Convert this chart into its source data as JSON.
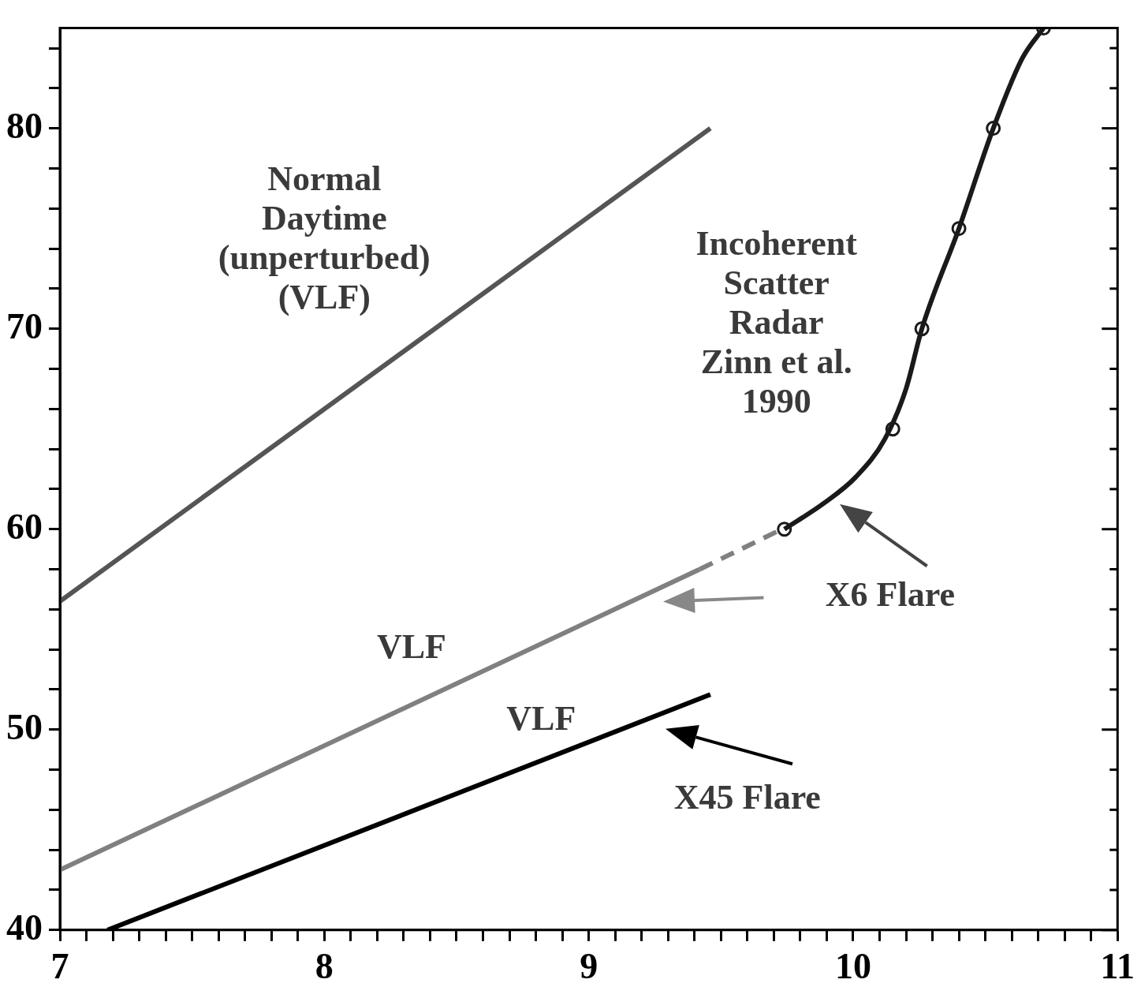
{
  "chart_data": {
    "type": "line",
    "xlim": [
      7,
      11
    ],
    "ylim": [
      40,
      85
    ],
    "xticks": [
      7,
      {
        "value": 7.1,
        "label": null
      },
      {
        "value": 7.2,
        "label": null
      },
      {
        "value": 7.3,
        "label": null
      },
      {
        "value": 7.4,
        "label": null
      },
      {
        "value": 7.5,
        "label": null
      },
      {
        "value": 7.6,
        "label": null
      },
      {
        "value": 7.7,
        "label": null
      },
      {
        "value": 7.8,
        "label": null
      },
      {
        "value": 7.9,
        "label": null
      },
      8,
      {
        "value": 8.1,
        "label": null
      },
      {
        "value": 8.2,
        "label": null
      },
      {
        "value": 8.3,
        "label": null
      },
      {
        "value": 8.4,
        "label": null
      },
      {
        "value": 8.5,
        "label": null
      },
      {
        "value": 8.6,
        "label": null
      },
      {
        "value": 8.7,
        "label": null
      },
      {
        "value": 8.8,
        "label": null
      },
      {
        "value": 8.9,
        "label": null
      },
      9,
      {
        "value": 9.1,
        "label": null
      },
      {
        "value": 9.2,
        "label": null
      },
      {
        "value": 9.3,
        "label": null
      },
      {
        "value": 9.4,
        "label": null
      },
      {
        "value": 9.5,
        "label": null
      },
      {
        "value": 9.6,
        "label": null
      },
      {
        "value": 9.7,
        "label": null
      },
      {
        "value": 9.8,
        "label": null
      },
      {
        "value": 9.9,
        "label": null
      },
      10,
      {
        "value": 10.1,
        "label": null
      },
      {
        "value": 10.2,
        "label": null
      },
      {
        "value": 10.3,
        "label": null
      },
      {
        "value": 10.4,
        "label": null
      },
      {
        "value": 10.5,
        "label": null
      },
      {
        "value": 10.6,
        "label": null
      },
      {
        "value": 10.7,
        "label": null
      },
      {
        "value": 10.8,
        "label": null
      },
      {
        "value": 10.9,
        "label": null
      },
      11
    ],
    "yticks": [
      40,
      {
        "value": 42,
        "label": null
      },
      {
        "value": 44,
        "label": null
      },
      {
        "value": 46,
        "label": null
      },
      {
        "value": 48,
        "label": null
      },
      50,
      {
        "value": 52,
        "label": null
      },
      {
        "value": 54,
        "label": null
      },
      {
        "value": 56,
        "label": null
      },
      {
        "value": 58,
        "label": null
      },
      60,
      {
        "value": 62,
        "label": null
      },
      {
        "value": 64,
        "label": null
      },
      {
        "value": 66,
        "label": null
      },
      {
        "value": 68,
        "label": null
      },
      70,
      {
        "value": 72,
        "label": null
      },
      {
        "value": 74,
        "label": null
      },
      {
        "value": 76,
        "label": null
      },
      {
        "value": 78,
        "label": null
      },
      80,
      {
        "value": 82,
        "label": null
      },
      {
        "value": 84,
        "label": null
      }
    ],
    "series": [
      {
        "color": "#555555",
        "x": [
          7,
          9.46
        ],
        "values": [
          56.4,
          80
        ]
      },
      {
        "color": "#808080",
        "x": [
          7,
          9.42
        ],
        "values": [
          43,
          58
        ]
      },
      {
        "color": "#808080",
        "line_style": "dashed",
        "x": [
          9.42,
          9.74
        ],
        "values": [
          58,
          60.06
        ]
      },
      {
        "color": "#000000",
        "x": [
          7.18,
          9.46
        ],
        "values": [
          40,
          51.75
        ]
      },
      {
        "color": "#1a1a1a",
        "x": [
          9.74,
          9.89,
          10.01,
          10.12,
          10.2,
          10.26,
          10.4,
          10.53,
          10.64,
          10.72
        ],
        "values": [
          60,
          61.3,
          62.6,
          64.5,
          67,
          70,
          75,
          80,
          83.5,
          85
        ]
      },
      {
        "type": "scatter",
        "marker": "circle",
        "color": "#1a1a1a",
        "x": [
          9.74,
          10.15,
          10.26,
          10.4,
          10.53,
          10.72
        ],
        "values": [
          60,
          65,
          70,
          75,
          80,
          85
        ]
      }
    ],
    "annotations": [
      "Normal\nDaytime\n(unperturbed)\n(VLF)",
      "Incoherent\nScatter\nRadar\nZinn et al.\n1990",
      "VLF",
      "VLF",
      "X6 Flare",
      "X45 Flare"
    ],
    "grid": false,
    "legend": false,
    "marker": "none",
    "line_style": "solid"
  }
}
